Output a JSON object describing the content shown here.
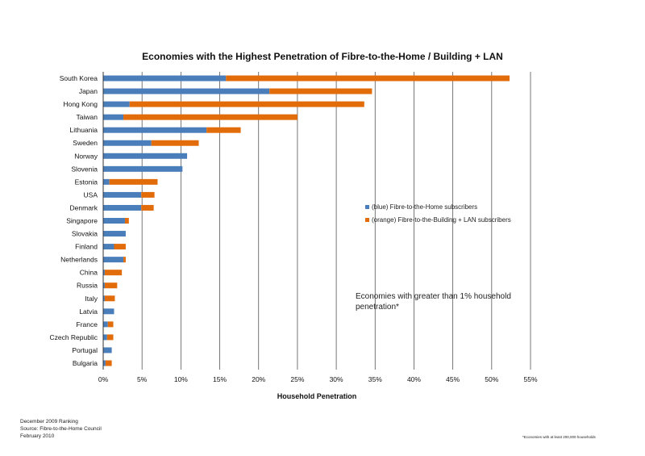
{
  "colors": {
    "fttH": "#4a7ebb",
    "fttB": "#e36c0a",
    "grid": "#555555"
  },
  "chart_data": {
    "type": "bar",
    "orientation": "horizontal",
    "stacked": true,
    "title": "Economies with the Highest Penetration of  Fibre-to-the-Home / Building  + LAN",
    "xlabel": "Household Penetration",
    "ylabel": "",
    "xlim": [
      0,
      55
    ],
    "xticks": [
      "0%",
      "5%",
      "10%",
      "15%",
      "20%",
      "25%",
      "30%",
      "35%",
      "40%",
      "45%",
      "50%",
      "55%"
    ],
    "grid": true,
    "legend_position": "right-middle",
    "categories": [
      "South Korea",
      "Japan",
      "Hong Kong",
      "Taiwan",
      "Lithuania",
      "Sweden",
      "Norway",
      "Slovenia",
      "Estonia",
      "USA",
      "Denmark",
      "Singapore",
      "Slovakia",
      "Finland",
      "Netherlands",
      "China",
      "Russia",
      "Italy",
      "Latvia",
      "France",
      "Czech Republic",
      "Portugal",
      "Bulgaria"
    ],
    "series": [
      {
        "name": "(blue) Fibre-to-the-Home subscribers",
        "values": [
          15.8,
          21.4,
          3.4,
          2.6,
          13.3,
          6.2,
          10.8,
          10.2,
          0.8,
          4.9,
          4.9,
          2.8,
          2.9,
          1.4,
          2.6,
          0.2,
          0.2,
          0.2,
          1.4,
          0.6,
          0.5,
          1.1,
          0.3
        ]
      },
      {
        "name": "(orange) Fibre-to-the-Building + LAN subscribers",
        "values": [
          36.5,
          13.2,
          30.2,
          22.4,
          4.4,
          6.1,
          0,
          0,
          6.2,
          1.7,
          1.6,
          0.5,
          0,
          1.5,
          0.3,
          2.2,
          1.6,
          1.3,
          0,
          0.7,
          0.8,
          0,
          0.8
        ]
      }
    ]
  },
  "annotation": "Economies with greater than 1% household penetration*",
  "footer_lines": [
    "December 2009 Ranking",
    "Source: Fibre-to-the-Home Council",
    "February 2010"
  ],
  "footnote": "*Economies with at least 200,000 households"
}
